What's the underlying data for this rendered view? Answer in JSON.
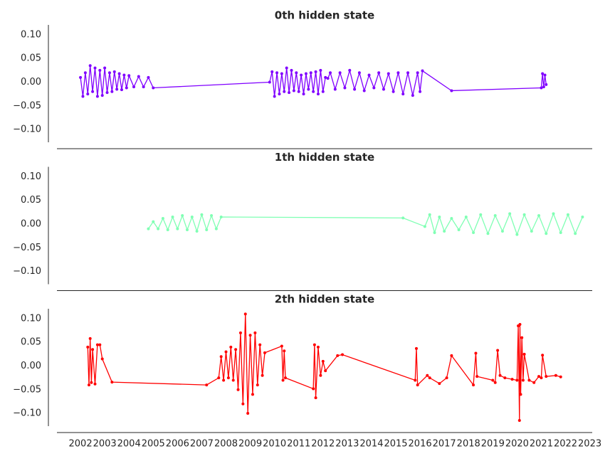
{
  "chart_data": [
    {
      "type": "line",
      "title": "0th hidden state",
      "color": "#8000ff",
      "x": [
        2002.0,
        2002.1,
        2002.2,
        2002.3,
        2002.4,
        2002.5,
        2002.6,
        2002.7,
        2002.8,
        2002.9,
        2003.0,
        2003.1,
        2003.2,
        2003.3,
        2003.4,
        2003.5,
        2003.6,
        2003.7,
        2003.8,
        2003.9,
        2004.0,
        2004.2,
        2004.4,
        2004.6,
        2004.8,
        2005.0,
        2009.8,
        2009.9,
        2010.0,
        2010.1,
        2010.2,
        2010.3,
        2010.4,
        2010.5,
        2010.6,
        2010.7,
        2010.8,
        2010.9,
        2011.0,
        2011.1,
        2011.2,
        2011.3,
        2011.4,
        2011.5,
        2011.6,
        2011.7,
        2011.8,
        2011.9,
        2012.0,
        2012.1,
        2012.2,
        2012.3,
        2012.5,
        2012.7,
        2012.9,
        2013.1,
        2013.3,
        2013.5,
        2013.7,
        2013.9,
        2014.1,
        2014.3,
        2014.5,
        2014.7,
        2014.9,
        2015.1,
        2015.3,
        2015.5,
        2015.7,
        2015.9,
        2016.0,
        2016.1,
        2017.3,
        2021.0,
        2021.05,
        2021.1,
        2021.15,
        2021.2
      ],
      "values": [
        0.01,
        -0.03,
        0.02,
        -0.025,
        0.035,
        -0.02,
        0.03,
        -0.03,
        0.025,
        -0.028,
        0.03,
        -0.022,
        0.02,
        -0.02,
        0.022,
        -0.015,
        0.018,
        -0.016,
        0.015,
        -0.012,
        0.014,
        -0.01,
        0.012,
        -0.01,
        0.01,
        -0.012,
        0.0,
        0.022,
        -0.03,
        0.02,
        -0.025,
        0.018,
        -0.02,
        0.03,
        -0.022,
        0.025,
        -0.018,
        0.02,
        -0.02,
        0.015,
        -0.025,
        0.018,
        -0.015,
        0.02,
        -0.02,
        0.022,
        -0.025,
        0.025,
        -0.02,
        0.01,
        0.008,
        0.02,
        -0.015,
        0.02,
        -0.012,
        0.025,
        -0.015,
        0.02,
        -0.018,
        0.015,
        -0.012,
        0.02,
        -0.015,
        0.018,
        -0.02,
        0.02,
        -0.025,
        0.02,
        -0.028,
        0.02,
        -0.02,
        0.024,
        -0.018,
        -0.012,
        0.018,
        -0.01,
        0.015,
        -0.005
      ],
      "xlim": [
        2001.03,
        2023.1
      ],
      "ylim": [
        -0.127,
        0.121
      ],
      "yticks": [
        {
          "value": 0.1,
          "label": "0.10"
        },
        {
          "value": 0.05,
          "label": "0.05"
        },
        {
          "value": 0,
          "label": "0.00"
        },
        {
          "value": -0.05,
          "label": "−0.05"
        },
        {
          "value": -0.1,
          "label": "−0.10"
        }
      ]
    },
    {
      "type": "line",
      "title": "1th hidden state",
      "color": "#80ffb4",
      "x": [
        2004.8,
        2005.0,
        2005.2,
        2005.4,
        2005.6,
        2005.8,
        2006.0,
        2006.2,
        2006.4,
        2006.6,
        2006.8,
        2007.0,
        2007.2,
        2007.4,
        2007.6,
        2007.8,
        2015.3,
        2016.2,
        2016.4,
        2016.6,
        2016.8,
        2017.0,
        2017.3,
        2017.6,
        2017.9,
        2018.2,
        2018.5,
        2018.8,
        2019.1,
        2019.4,
        2019.7,
        2020.0,
        2020.3,
        2020.6,
        2020.9,
        2021.2,
        2021.5,
        2021.8,
        2022.1,
        2022.4,
        2022.7
      ],
      "values": [
        -0.01,
        0.005,
        -0.01,
        0.012,
        -0.012,
        0.015,
        -0.01,
        0.018,
        -0.012,
        0.015,
        -0.015,
        0.02,
        -0.012,
        0.018,
        -0.01,
        0.015,
        0.013,
        -0.005,
        0.02,
        -0.018,
        0.015,
        -0.015,
        0.012,
        -0.012,
        0.015,
        -0.018,
        0.02,
        -0.02,
        0.018,
        -0.015,
        0.022,
        -0.022,
        0.02,
        -0.015,
        0.018,
        -0.02,
        0.022,
        -0.018,
        0.02,
        -0.02,
        0.015
      ],
      "xlim": [
        2001.03,
        2023.1
      ],
      "ylim": [
        -0.127,
        0.121
      ],
      "yticks": [
        {
          "value": 0.1,
          "label": "0.10"
        },
        {
          "value": 0.05,
          "label": "0.05"
        },
        {
          "value": 0,
          "label": "0.00"
        },
        {
          "value": -0.05,
          "label": "−0.05"
        },
        {
          "value": -0.1,
          "label": "−0.10"
        }
      ]
    },
    {
      "type": "line",
      "title": "2th hidden state",
      "color": "#ff0000",
      "x": [
        2002.3,
        2002.35,
        2002.4,
        2002.45,
        2002.5,
        2002.6,
        2002.7,
        2002.8,
        2002.9,
        2003.3,
        2007.2,
        2007.7,
        2007.8,
        2007.9,
        2008.0,
        2008.1,
        2008.2,
        2008.3,
        2008.4,
        2008.5,
        2008.6,
        2008.7,
        2008.8,
        2008.9,
        2009.0,
        2009.1,
        2009.2,
        2009.3,
        2009.4,
        2009.5,
        2009.6,
        2010.3,
        2010.35,
        2010.4,
        2010.45,
        2011.6,
        2011.65,
        2011.7,
        2011.8,
        2011.9,
        2012.0,
        2012.1,
        2012.6,
        2012.8,
        2015.8,
        2015.85,
        2015.9,
        2016.3,
        2016.4,
        2016.8,
        2017.1,
        2017.3,
        2018.2,
        2018.3,
        2018.35,
        2019.0,
        2019.1,
        2019.2,
        2019.3,
        2019.5,
        2019.8,
        2020.0,
        2020.05,
        2020.1,
        2020.12,
        2020.15,
        2020.2,
        2020.25,
        2020.3,
        2020.5,
        2020.7,
        2020.9,
        2021.0,
        2021.05,
        2021.2,
        2021.6,
        2021.8
      ],
      "values": [
        0.04,
        -0.04,
        0.058,
        -0.035,
        0.035,
        -0.038,
        0.045,
        0.045,
        0.015,
        -0.034,
        -0.04,
        -0.025,
        0.02,
        -0.03,
        0.03,
        -0.025,
        0.04,
        -0.03,
        0.035,
        -0.05,
        0.07,
        -0.08,
        0.11,
        -0.1,
        0.065,
        -0.06,
        0.07,
        -0.04,
        0.045,
        -0.02,
        0.028,
        0.042,
        -0.03,
        0.032,
        -0.025,
        -0.048,
        0.045,
        -0.067,
        0.04,
        -0.02,
        0.01,
        -0.01,
        0.022,
        0.024,
        -0.03,
        0.037,
        -0.04,
        -0.02,
        -0.025,
        -0.037,
        -0.025,
        0.022,
        -0.04,
        0.027,
        -0.022,
        -0.03,
        -0.035,
        0.033,
        -0.02,
        -0.025,
        -0.028,
        -0.03,
        0.085,
        -0.115,
        0.088,
        -0.06,
        0.06,
        -0.03,
        0.025,
        -0.03,
        -0.035,
        -0.022,
        -0.025,
        0.023,
        -0.022,
        -0.02,
        -0.023
      ],
      "xlim": [
        2001.03,
        2023.1
      ],
      "ylim": [
        -0.127,
        0.121
      ],
      "yticks": [
        {
          "value": 0.1,
          "label": "0.10"
        },
        {
          "value": 0.05,
          "label": "0.05"
        },
        {
          "value": 0,
          "label": "0.00"
        },
        {
          "value": -0.05,
          "label": "−0.05"
        },
        {
          "value": -0.1,
          "label": "−0.10"
        }
      ],
      "xticks": [
        2002,
        2003,
        2004,
        2005,
        2006,
        2007,
        2008,
        2009,
        2010,
        2011,
        2012,
        2013,
        2014,
        2015,
        2016,
        2017,
        2018,
        2019,
        2020,
        2021,
        2022,
        2023
      ]
    }
  ]
}
